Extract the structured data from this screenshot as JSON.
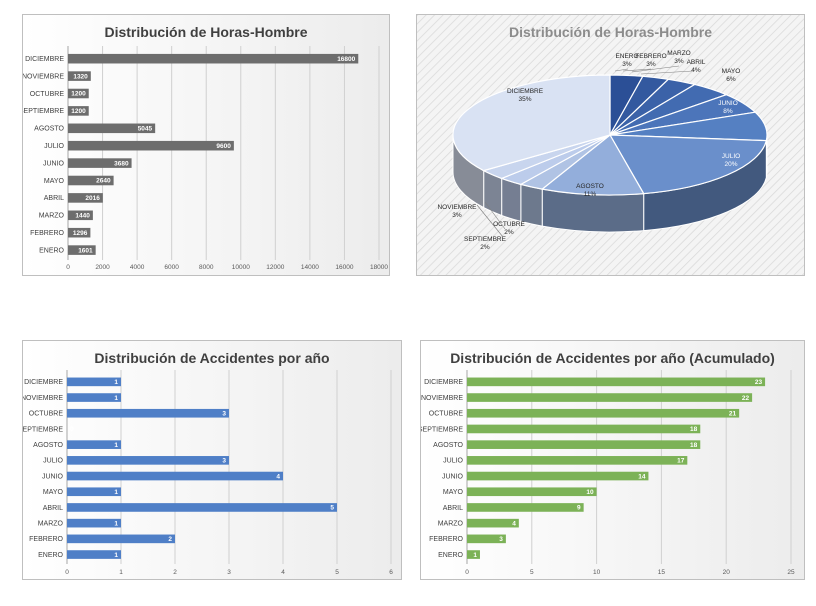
{
  "chart_data": [
    {
      "type": "bar",
      "orientation": "horizontal",
      "title": "Distribución de Horas-Hombre",
      "categories": [
        "DICIEMBRE",
        "NOVIEMBRE",
        "OCTUBRE",
        "SEPTIEMBRE",
        "AGOSTO",
        "JULIO",
        "JUNIO",
        "MAYO",
        "ABRIL",
        "MARZO",
        "FEBRERO",
        "ENERO"
      ],
      "values": [
        16800,
        1320,
        1200,
        1200,
        5045,
        9600,
        3680,
        2640,
        2016,
        1440,
        1296,
        1601
      ],
      "xlim": [
        0,
        18000
      ],
      "xticks": [
        0,
        2000,
        4000,
        6000,
        8000,
        10000,
        12000,
        14000,
        16000,
        18000
      ],
      "grid": true,
      "color": "#6d6d6d"
    },
    {
      "type": "pie",
      "style": "3d",
      "title": "Distribución de Horas-Hombre",
      "slices": [
        {
          "label": "ENERO",
          "pct": "3%",
          "value": 1601,
          "color": "#2b4f96"
        },
        {
          "label": "FEBRERO",
          "pct": "3%",
          "value": 1296,
          "color": "#33599f"
        },
        {
          "label": "MARZO",
          "pct": "3%",
          "value": 1440,
          "color": "#3b62a8"
        },
        {
          "label": "ABRIL",
          "pct": "4%",
          "value": 2016,
          "color": "#426bb1"
        },
        {
          "label": "MAYO",
          "pct": "6%",
          "value": 2640,
          "color": "#4c75ba"
        },
        {
          "label": "JUNIO",
          "pct": "8%",
          "value": 3680,
          "color": "#5580c2"
        },
        {
          "label": "JULIO",
          "pct": "20%",
          "value": 9600,
          "color": "#6a8fcb"
        },
        {
          "label": "AGOSTO",
          "pct": "11%",
          "value": 5045,
          "color": "#93aedb"
        },
        {
          "label": "SEPTIEMBRE",
          "pct": "2%",
          "value": 1200,
          "color": "#b0c3e4"
        },
        {
          "label": "OCTUBRE",
          "pct": "2%",
          "value": 1200,
          "color": "#bccceb"
        },
        {
          "label": "NOVIEMBRE",
          "pct": "3%",
          "value": 1320,
          "color": "#c8d5ee"
        },
        {
          "label": "DICIEMBRE",
          "pct": "35%",
          "value": 16800,
          "color": "#d9e2f3"
        }
      ]
    },
    {
      "type": "bar",
      "orientation": "horizontal",
      "title": "Distribución de Accidentes por año",
      "categories": [
        "DICIEMBRE",
        "NOVIEMBRE",
        "OCTUBRE",
        "SEPTIEMBRE",
        "AGOSTO",
        "JULIO",
        "JUNIO",
        "MAYO",
        "ABRIL",
        "MARZO",
        "FEBRERO",
        "ENERO"
      ],
      "values": [
        1,
        1,
        3,
        0,
        1,
        3,
        4,
        1,
        5,
        1,
        2,
        1
      ],
      "xlim": [
        0,
        6
      ],
      "xticks": [
        0,
        1,
        2,
        3,
        4,
        5,
        6
      ],
      "grid": true,
      "color": "#4f7fc7"
    },
    {
      "type": "bar",
      "orientation": "horizontal",
      "title": "Distribución de Accidentes por año (Acumulado)",
      "categories": [
        "DICIEMBRE",
        "NOVIEMBRE",
        "OCTUBRE",
        "SEPTIEMBRE",
        "AGOSTO",
        "JULIO",
        "JUNIO",
        "MAYO",
        "ABRIL",
        "MARZO",
        "FEBRERO",
        "ENERO"
      ],
      "values": [
        23,
        22,
        21,
        18,
        18,
        17,
        14,
        10,
        9,
        4,
        3,
        1
      ],
      "xlim": [
        0,
        25
      ],
      "xticks": [
        0,
        5,
        10,
        15,
        20,
        25
      ],
      "grid": true,
      "color": "#7cb257"
    }
  ]
}
